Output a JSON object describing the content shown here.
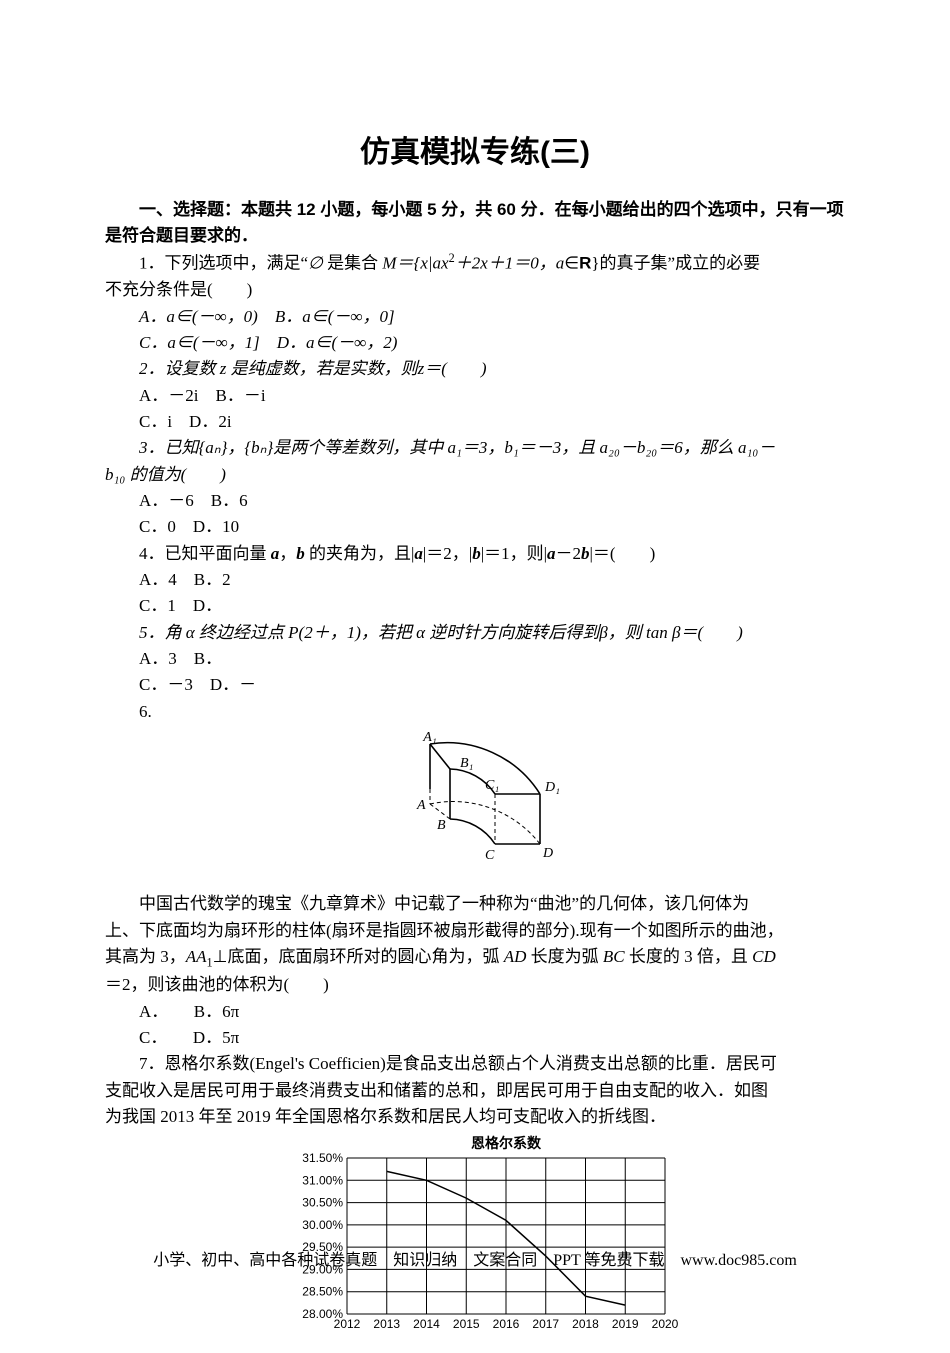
{
  "title": "仿真模拟专练(三)",
  "section1": {
    "heading": "一、选择题：本题共 12 小题，每小题 5 分，共 60 分．在每小题给出的四个选项中，只有一项是符合题目要求的．"
  },
  "q1": {
    "stem_a": "1．下列选项中，满足“",
    "stem_b": "是集合 ",
    "m": "M",
    "eq": "＝{x|ax",
    "eq2": "＋2x＋1＝0，",
    "a_in": "a",
    "r": "∈R",
    "tail": "}的真子集”成立的必要",
    "line2": "不充分条件是(　　)",
    "optA": "A．a∈(－∞，0)　B．a∈(－∞，0]",
    "optC": "C．a∈(－∞，1]　D．a∈(－∞，2)"
  },
  "q2": {
    "stem": "2．设复数 z 是纯虚数，若是实数，则z＝(　　)",
    "optA": "A．－2i　B．－i",
    "optC": "C．i　D．2i"
  },
  "q3": {
    "stem": "3．已知{aₙ}，{bₙ}是两个等差数列，其中 a₁＝3，b₁＝－3，且 a₂₀－b₂₀＝6，那么 a₁₀－",
    "line2": "b₁₀ 的值为(　　)",
    "optA": "A．－6　B．6",
    "optC": "C．0　D．10"
  },
  "q4": {
    "stem": "4．已知平面向量 a，b 的夹角为，且|a|＝2，|b|＝1，则|a－2b|＝(　　)",
    "optA": "A．4　B．2",
    "optC": "C．1　D．"
  },
  "q5": {
    "stem": "5．角 α 终边经过点 P(2＋，1)，若把 α 逆时针方向旋转后得到β，则 tan β＝(　　)",
    "optA": "A．3　B．",
    "optC": "C．－3　D．－"
  },
  "q6": {
    "label": "6.",
    "fig": {
      "A1": "A₁",
      "B1": "B₁",
      "C1": "C₁",
      "D1": "D₁",
      "A": "A",
      "B": "B",
      "C": "C",
      "D": "D",
      "colors": {
        "stroke": "#000000",
        "dash": "4,3"
      }
    },
    "p1": "中国古代数学的瑰宝《九章算术》中记载了一种称为“曲池”的几何体，该几何体为",
    "p2": "上、下底面均为扇环形的柱体(扇环是指圆环被扇形截得的部分).现有一个如图所示的曲池，",
    "p3": "其高为 3，AA₁⊥底面，底面扇环所对的圆心角为，弧 AD 长度为弧 BC 长度的 3 倍，且 CD",
    "p4": "＝2，则该曲池的体积为(　　)",
    "optA": "A．　　B．6π",
    "optC": "C．　　D．5π"
  },
  "q7": {
    "p1": "7．恩格尔系数(Engel's Coefficien)是食品支出总额占个人消费支出总额的比重．居民可",
    "p2": "支配收入是居民可用于最终消费支出和储蓄的总和，即居民可用于自由支配的收入．如图",
    "p3": "为我国 2013 年至 2019 年全国恩格尔系数和居民人均可支配收入的折线图．",
    "chart": {
      "title": "恩格尔系数",
      "type": "line",
      "title_fontsize": 14,
      "title_fontweight": "bold",
      "x_labels": [
        "2012",
        "2013",
        "2014",
        "2015",
        "2016",
        "2017",
        "2018",
        "2019",
        "2020"
      ],
      "y_labels": [
        "28.00%",
        "28.50%",
        "29.00%",
        "29.50%",
        "30.00%",
        "30.50%",
        "31.00%",
        "31.50%"
      ],
      "y_min": 28.0,
      "y_max": 31.5,
      "y_step": 0.5,
      "series": [
        {
          "x": 2013,
          "y": 31.2
        },
        {
          "x": 2014,
          "y": 31.0
        },
        {
          "x": 2015,
          "y": 30.6
        },
        {
          "x": 2016,
          "y": 30.1
        },
        {
          "x": 2017,
          "y": 29.3
        },
        {
          "x": 2018,
          "y": 28.4
        },
        {
          "x": 2019,
          "y": 28.2
        }
      ],
      "line_color": "#000000",
      "grid_color": "#000000",
      "background_color": "#ffffff",
      "label_fontsize": 12,
      "line_width": 1
    }
  },
  "footer": "小学、初中、高中各种试卷真题　知识归纳　文案合同　PPT 等免费下载　www.doc985.com"
}
